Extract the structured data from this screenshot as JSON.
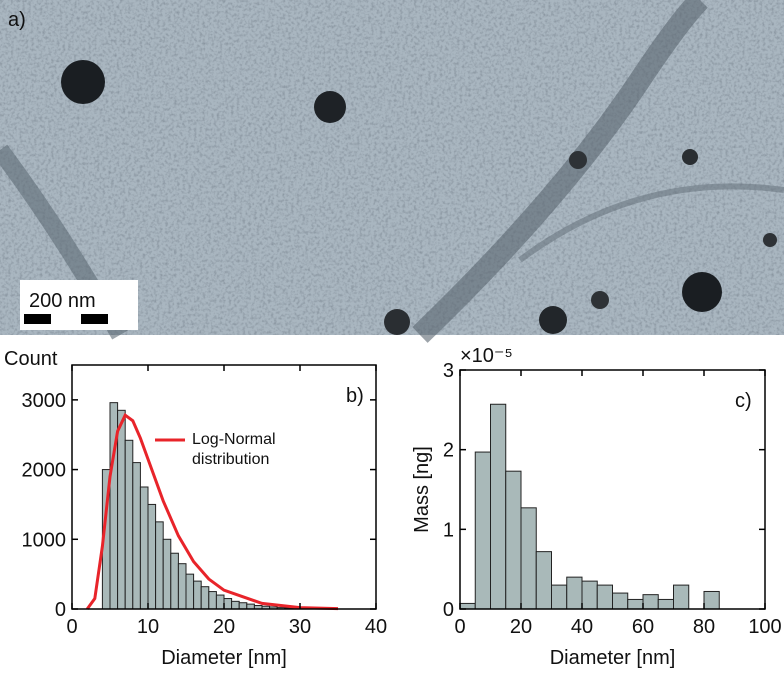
{
  "image": {
    "label": "a)",
    "scale_bar": "200 nm"
  },
  "chart_data": [
    {
      "type": "histogram",
      "panel_label": "b)",
      "y_label": "Count",
      "x_label": "Diameter [nm]",
      "bins": [
        4,
        5,
        6,
        7,
        8,
        9,
        10,
        11,
        12,
        13,
        14,
        15,
        16,
        17,
        18,
        19,
        20,
        21,
        22,
        23,
        24,
        25,
        26,
        27,
        28,
        29,
        30
      ],
      "values": [
        2000,
        2960,
        2850,
        2420,
        2100,
        1750,
        1500,
        1250,
        1000,
        800,
        650,
        500,
        400,
        320,
        250,
        200,
        150,
        110,
        90,
        70,
        50,
        40,
        30,
        20,
        15,
        10
      ],
      "color": "#a9b9b9",
      "lines": [
        {
          "name": "Log-Normal distribution",
          "color": "#e8242a",
          "x": [
            2,
            3,
            4,
            5,
            6,
            7,
            8,
            9,
            10,
            12,
            14,
            16,
            18,
            20,
            25,
            30,
            35
          ],
          "values": [
            0,
            150,
            900,
            1900,
            2550,
            2780,
            2700,
            2450,
            2150,
            1550,
            1050,
            680,
            430,
            270,
            80,
            20,
            5
          ]
        }
      ],
      "xlim": [
        0,
        40
      ],
      "xticks": [
        0,
        10,
        20,
        30,
        40
      ],
      "ylim": [
        0,
        3500
      ],
      "yticks": [
        0,
        1000,
        2000,
        3000
      ]
    },
    {
      "type": "histogram",
      "panel_label": "c)",
      "y_label": "Mass [ng]",
      "x_label": "Diameter [nm]",
      "y_scale_label": "×10⁻⁵",
      "bins": [
        0,
        5,
        10,
        15,
        20,
        25,
        30,
        35,
        40,
        45,
        50,
        55,
        60,
        65,
        70,
        75,
        80,
        85
      ],
      "values": [
        0.07,
        1.97,
        2.57,
        1.73,
        1.27,
        0.72,
        0.3,
        0.4,
        0.35,
        0.3,
        0.2,
        0.12,
        0.18,
        0.12,
        0.3,
        0,
        0.22
      ],
      "color": "#a9b9b9",
      "xlim": [
        0,
        100
      ],
      "xticks": [
        0,
        20,
        40,
        60,
        80,
        100
      ],
      "ylim": [
        0,
        3
      ],
      "yticks": [
        0,
        1,
        2,
        3
      ]
    }
  ]
}
